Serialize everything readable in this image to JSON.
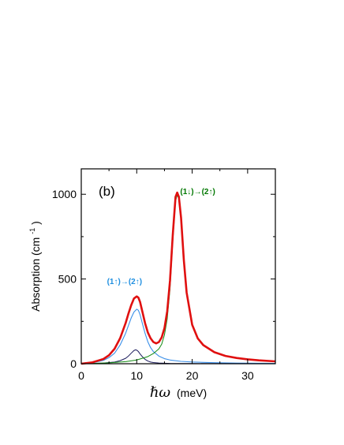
{
  "chart_data": {
    "type": "line",
    "panel_label": "(b)",
    "xlabel_symbol": "ℏω",
    "xlabel_unit": "(meV)",
    "ylabel": "Absorption (cm",
    "ylabel_sup": "-1",
    "ylabel_close": ")",
    "xlim": [
      0,
      35
    ],
    "ylim": [
      0,
      1150
    ],
    "xticks": [
      0,
      10,
      20,
      30
    ],
    "xtick_labels": [
      "0",
      "10",
      "20",
      "30"
    ],
    "yticks": [
      0,
      500,
      1000
    ],
    "ytick_labels": [
      "0",
      "500",
      "1000"
    ],
    "grid": false,
    "annotations": [
      {
        "text": "(1↑)→(2↑)",
        "x": 7.8,
        "y": 470,
        "color": "#1f8fe0"
      },
      {
        "text": "(1↓)→(2↑)",
        "x": 21.0,
        "y": 1000,
        "color": "#007700"
      }
    ],
    "series": [
      {
        "color": "#e01010",
        "width": 2.6,
        "x": [
          0,
          2,
          4,
          5,
          6,
          7,
          8,
          8.5,
          9,
          9.5,
          10,
          10.3,
          10.6,
          11,
          11.5,
          12,
          12.5,
          13,
          13.5,
          14,
          14.5,
          15,
          15.5,
          16,
          16.5,
          17,
          17.3,
          17.6,
          18,
          18.5,
          19,
          20,
          21,
          22,
          24,
          26,
          28,
          30,
          32,
          35
        ],
        "y": [
          0,
          8,
          28,
          50,
          88,
          150,
          240,
          295,
          345,
          385,
          397,
          390,
          365,
          310,
          240,
          185,
          150,
          128,
          120,
          128,
          155,
          210,
          310,
          490,
          760,
          985,
          1010,
          985,
          860,
          610,
          420,
          230,
          150,
          110,
          68,
          46,
          34,
          26,
          20,
          14
        ]
      },
      {
        "color": "#3a8fe8",
        "width": 1.1,
        "x": [
          0,
          2,
          4,
          5,
          6,
          7,
          8,
          8.5,
          9,
          9.5,
          10,
          10.3,
          10.6,
          11,
          11.5,
          12,
          12.5,
          13,
          14,
          15,
          16,
          18,
          20,
          24,
          28,
          35
        ],
        "y": [
          0,
          5,
          20,
          36,
          62,
          110,
          180,
          225,
          270,
          305,
          322,
          315,
          290,
          240,
          180,
          130,
          95,
          72,
          45,
          30,
          22,
          14,
          10,
          6,
          4,
          2
        ]
      },
      {
        "color": "#1a1a5c",
        "width": 1.0,
        "x": [
          0,
          4,
          6,
          7,
          8,
          8.5,
          9,
          9.5,
          9.8,
          10,
          10.3,
          10.6,
          11,
          11.5,
          12,
          12.5,
          13,
          14,
          16,
          20,
          35
        ],
        "y": [
          0,
          4,
          10,
          18,
          32,
          45,
          62,
          78,
          82,
          80,
          72,
          58,
          42,
          26,
          16,
          10,
          7,
          4,
          2,
          1,
          0
        ]
      },
      {
        "color": "#128a12",
        "width": 1.0,
        "x": [
          0,
          2,
          5,
          8,
          10,
          12,
          13,
          14,
          14.5,
          15,
          15.5,
          16,
          16.5,
          17,
          17.3,
          17.6,
          18,
          18.5,
          19,
          20,
          21,
          22,
          24,
          26,
          28,
          30,
          32,
          35
        ],
        "y": [
          0,
          2,
          5,
          12,
          22,
          42,
          60,
          88,
          115,
          170,
          265,
          440,
          720,
          960,
          995,
          975,
          860,
          610,
          420,
          230,
          150,
          110,
          68,
          46,
          34,
          26,
          20,
          14
        ]
      }
    ]
  }
}
